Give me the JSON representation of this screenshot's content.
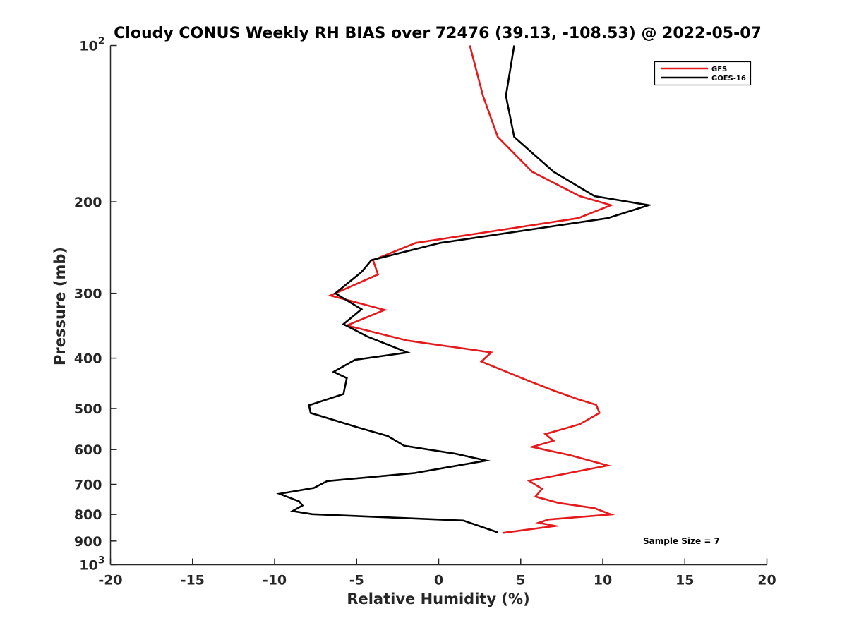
{
  "chart_data": {
    "type": "line",
    "title": "Cloudy CONUS Weekly RH BIAS over 72476 (39.13, -108.53) @ 2022-05-07",
    "xlabel": "Relative Humidity (%)",
    "ylabel": "Pressure (mb)",
    "xlim": [
      -20,
      20
    ],
    "ylim": [
      100,
      1000
    ],
    "y_scale": "log",
    "y_reversed": true,
    "grid": false,
    "legend_position": "top-right",
    "annotation": "Sample Size = 7",
    "x_ticks": [
      "-20",
      "-15",
      "-10",
      "-5",
      "0",
      "5",
      "10",
      "15",
      "20"
    ],
    "y_ticks": [
      {
        "value": 100,
        "base": "10",
        "exp": "2"
      },
      {
        "value": 200,
        "label": "200"
      },
      {
        "value": 300,
        "label": "300"
      },
      {
        "value": 400,
        "label": "400"
      },
      {
        "value": 500,
        "label": "500"
      },
      {
        "value": 600,
        "label": "600"
      },
      {
        "value": 700,
        "label": "700"
      },
      {
        "value": 800,
        "label": "800"
      },
      {
        "value": 900,
        "label": "900"
      },
      {
        "value": 1000,
        "base": "10",
        "exp": "3"
      }
    ],
    "series": [
      {
        "name": "GFS",
        "color": "#e41a1c",
        "points": [
          [
            1.9,
            100
          ],
          [
            2.7,
            125
          ],
          [
            3.6,
            150
          ],
          [
            5.7,
            175
          ],
          [
            8.6,
            195
          ],
          [
            10.5,
            203
          ],
          [
            8.5,
            215
          ],
          [
            -1.4,
            240
          ],
          [
            -4.0,
            259
          ],
          [
            -3.7,
            276
          ],
          [
            -6.6,
            303
          ],
          [
            -3.3,
            323
          ],
          [
            -5.6,
            346
          ],
          [
            -1.9,
            370
          ],
          [
            3.2,
            390
          ],
          [
            2.6,
            406
          ],
          [
            5.3,
            440
          ],
          [
            7.1,
            463
          ],
          [
            8.5,
            480
          ],
          [
            9.6,
            492
          ],
          [
            9.8,
            510
          ],
          [
            8.6,
            536
          ],
          [
            6.5,
            560
          ],
          [
            7.0,
            577
          ],
          [
            5.7,
            593
          ],
          [
            8.0,
            615
          ],
          [
            10.3,
            644
          ],
          [
            7.9,
            666
          ],
          [
            5.5,
            689
          ],
          [
            6.3,
            714
          ],
          [
            5.9,
            739
          ],
          [
            7.3,
            760
          ],
          [
            9.5,
            778
          ],
          [
            10.5,
            800
          ],
          [
            6.7,
            818
          ],
          [
            6.1,
            830
          ],
          [
            7.1,
            842
          ],
          [
            3.9,
            868
          ]
        ]
      },
      {
        "name": "GOES-16",
        "color": "#000000",
        "points": [
          [
            4.6,
            100
          ],
          [
            4.1,
            125
          ],
          [
            4.6,
            150
          ],
          [
            7.0,
            175
          ],
          [
            9.5,
            195
          ],
          [
            12.8,
            203
          ],
          [
            10.3,
            215
          ],
          [
            0.1,
            240
          ],
          [
            -4.1,
            259
          ],
          [
            -4.7,
            273
          ],
          [
            -6.3,
            300
          ],
          [
            -4.7,
            322
          ],
          [
            -5.8,
            344
          ],
          [
            -4.3,
            364
          ],
          [
            -1.9,
            390
          ],
          [
            -5.1,
            403
          ],
          [
            -6.4,
            425
          ],
          [
            -5.6,
            437
          ],
          [
            -5.8,
            469
          ],
          [
            -7.9,
            493
          ],
          [
            -7.8,
            510
          ],
          [
            -5.0,
            543
          ],
          [
            -3.1,
            565
          ],
          [
            -2.1,
            590
          ],
          [
            1.0,
            611
          ],
          [
            2.9,
            630
          ],
          [
            -1.5,
            666
          ],
          [
            -6.8,
            690
          ],
          [
            -7.6,
            711
          ],
          [
            -9.7,
            730
          ],
          [
            -8.5,
            755
          ],
          [
            -8.3,
            769
          ],
          [
            -8.9,
            788
          ],
          [
            -7.7,
            799
          ],
          [
            1.5,
            822
          ],
          [
            3.6,
            866
          ]
        ]
      }
    ]
  }
}
